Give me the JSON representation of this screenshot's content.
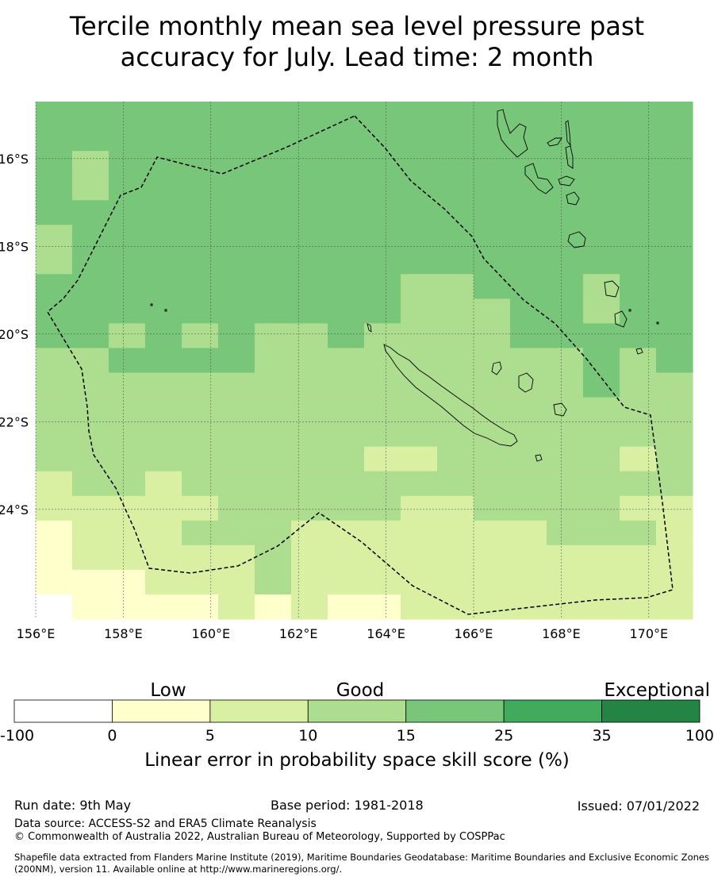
{
  "title_line1": "Tercile monthly mean sea level pressure past",
  "title_line2": "accuracy for July. Lead time: 2 month",
  "map": {
    "lon_range": [
      156,
      171
    ],
    "lat_range": [
      -26.5,
      -14.7
    ],
    "x_ticks": [
      "156°E",
      "158°E",
      "160°E",
      "162°E",
      "164°E",
      "166°E",
      "168°E",
      "170°E"
    ],
    "y_ticks": [
      "16°S",
      "18°S",
      "20°S",
      "22°S",
      "24°S"
    ],
    "colors": [
      "#ffffff",
      "#ffffcc",
      "#d9f0a3",
      "#addd8e",
      "#78c679",
      "#41ab5d",
      "#238443"
    ]
  },
  "colorbar": {
    "label": "Linear error in probability space skill score (%)",
    "categories": [
      "Low",
      "Good",
      "Exceptional"
    ],
    "ticks": [
      "-100",
      "0",
      "5",
      "10",
      "15",
      "25",
      "35",
      "100"
    ],
    "colors": [
      "#ffffff",
      "#ffffcc",
      "#d9f0a3",
      "#addd8e",
      "#78c679",
      "#41ab5d",
      "#238443"
    ]
  },
  "footer": {
    "run_date": "Run date: 9th May",
    "base_period": "Base period: 1981-2018",
    "issued": "Issued: 07/01/2022",
    "data_source": "Data source: ACCESS-S2 and ERA5 Climate Reanalysis",
    "copyright": "© Commonwealth of Australia 2022, Australian Bureau of Meteorology, Supported by COSPPac",
    "shapefile": "Shapefile data extracted from Flanders Marine Institute (2019), Maritime Boundaries Geodatabase: Maritime Boundaries and Exclusive Economic Zones (200NM), version 11. Available online at http://www.marineregions.org/."
  }
}
